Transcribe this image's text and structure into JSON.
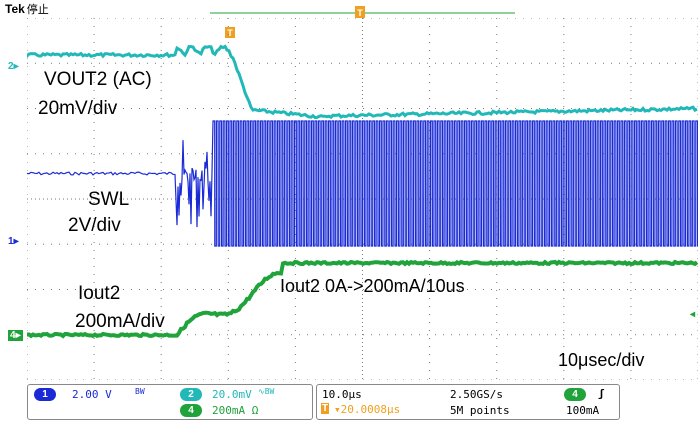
{
  "header": {
    "brand": "Tek",
    "acq_state": "停止"
  },
  "trigger_marker": "T",
  "channel_markers": {
    "ch2": "2",
    "ch1": "1",
    "ch4": "4"
  },
  "annotations": {
    "vout_label": "VOUT2 (AC)",
    "vout_scale": "20mV/div",
    "swl_label": "SWL",
    "swl_scale": "2V/div",
    "iout_label": "Iout2",
    "iout_scale": "200mA/div",
    "step_note": "Iout2 0A->200mA/10us",
    "timebase_note": "10μsec/div"
  },
  "status": {
    "ch1": {
      "num": "1",
      "scale": "2.00 V",
      "bw": "BW"
    },
    "ch2": {
      "num": "2",
      "scale": "20.0mV",
      "coupling": "∿BW"
    },
    "ch4": {
      "num": "4",
      "scale": "200mA Ω"
    },
    "horizontal": {
      "time_div": "10.0μs",
      "sample_rate": "2.50GS/s",
      "trigger_pos": "▾20.0008μs",
      "record": "5M points"
    },
    "trigger": {
      "source": "4",
      "slope": "ʃ",
      "level": "100mA"
    }
  },
  "colors": {
    "ch1": "#1a2bd6",
    "ch2": "#22b8b8",
    "ch4": "#1fa33a",
    "trigger": "#f0a020",
    "grid": "#7a7a7a"
  }
}
